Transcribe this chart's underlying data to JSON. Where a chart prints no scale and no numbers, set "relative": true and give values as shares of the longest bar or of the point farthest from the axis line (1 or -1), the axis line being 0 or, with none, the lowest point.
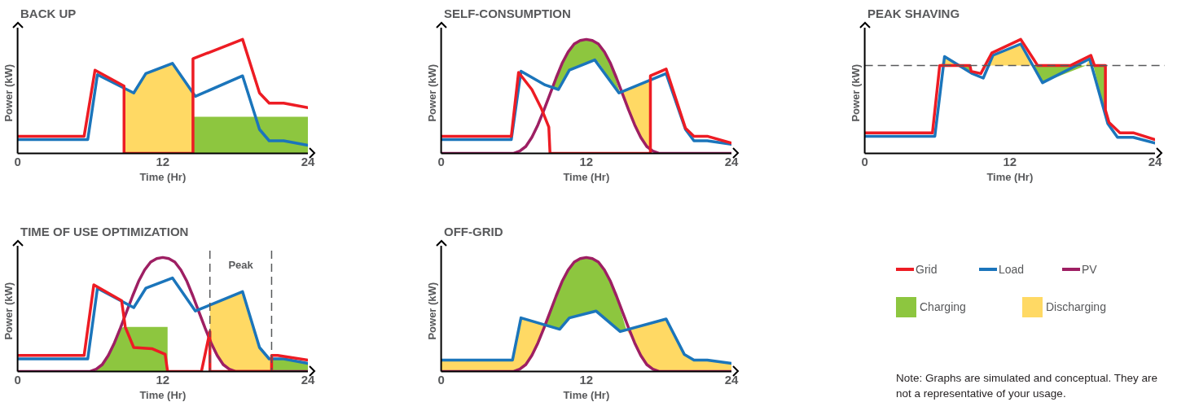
{
  "chart_data": [
    {
      "type": "line",
      "title": "BACK UP",
      "xlabel": "Time (Hr)",
      "ylabel": "Power (kW)",
      "relative": true,
      "xlim": [
        0,
        24
      ],
      "xticks": [
        0,
        12,
        24
      ],
      "series": [
        {
          "color": "#ed1c24",
          "x": [
            0,
            5.5,
            6.4,
            8.8,
            8.8,
            14.5,
            14.5,
            18.6,
            20,
            20.8,
            22,
            24
          ],
          "values": [
            0.15,
            0.15,
            0.73,
            0.59,
            0,
            0,
            0.83,
            1,
            0.53,
            0.44,
            0.44,
            0.4
          ]
        },
        {
          "color": "#1b75bb",
          "x": [
            0,
            5.8,
            6.6,
            9.6,
            10.6,
            12.8,
            14.7,
            18.6,
            20,
            20.8,
            22,
            24
          ],
          "values": [
            0.12,
            0.12,
            0.69,
            0.53,
            0.7,
            0.79,
            0.5,
            0.68,
            0.21,
            0.11,
            0.11,
            0.07
          ]
        },
        {
          "type": "area",
          "color": "#ffd964",
          "x": [
            8.8,
            9.6,
            10.6,
            12.8,
            14.5,
            14.5,
            8.8
          ],
          "values": [
            0.57,
            0.53,
            0.7,
            0.79,
            0.54,
            0,
            0
          ]
        },
        {
          "type": "area",
          "color": "#8dc63f",
          "x": [
            14.5,
            24,
            24,
            14.5
          ],
          "values": [
            0.32,
            0.32,
            0,
            0
          ]
        }
      ]
    },
    {
      "type": "line",
      "title": "SELF-CONSUMPTION",
      "xlabel": "Time (Hr)",
      "ylabel": "Power (kW)",
      "relative": true,
      "xlim": [
        0,
        24
      ],
      "xticks": [
        0,
        12,
        24
      ],
      "series": [
        {
          "color": "#ed1c24",
          "x": [
            0,
            5.8,
            6.4,
            7.5,
            8.3,
            8.9,
            9,
            17.3,
            17.3,
            18.6,
            20.2,
            20.9,
            22,
            24
          ],
          "values": [
            0.15,
            0.15,
            0.71,
            0.56,
            0.39,
            0.23,
            0,
            0,
            0.68,
            0.74,
            0.22,
            0.15,
            0.15,
            0.09
          ]
        },
        {
          "color": "#1b75bb",
          "x": [
            0,
            5.8,
            6.6,
            8.6,
            9.7,
            10.6,
            12.7,
            14.7,
            18.6,
            20.2,
            20.9,
            22,
            24
          ],
          "values": [
            0.12,
            0.12,
            0.72,
            0.6,
            0.56,
            0.73,
            0.82,
            0.53,
            0.7,
            0.21,
            0.11,
            0.11,
            0.08
          ]
        },
        {
          "color": "#9e1f63",
          "x": [
            0,
            6,
            6.5,
            7,
            7.5,
            8,
            8.5,
            9,
            9.5,
            10,
            10.5,
            11,
            11.5,
            12,
            12.5,
            13,
            13.5,
            14,
            14.5,
            15,
            15.5,
            16,
            16.5,
            17,
            17.5,
            18,
            24
          ],
          "values": [
            0,
            0,
            0.02,
            0.06,
            0.14,
            0.25,
            0.38,
            0.52,
            0.66,
            0.79,
            0.89,
            0.96,
            0.99,
            1,
            0.99,
            0.96,
            0.89,
            0.79,
            0.66,
            0.52,
            0.38,
            0.25,
            0.14,
            0.06,
            0.02,
            0,
            0
          ]
        },
        {
          "type": "area",
          "color": "#8dc63f",
          "x": [
            9.3,
            9.7,
            10,
            10.6,
            11,
            12,
            12.7,
            13,
            14,
            14.8,
            14,
            13,
            12.7,
            12,
            11,
            10.6,
            10,
            9.7
          ],
          "values": [
            0.58,
            0.71,
            0.79,
            0.91,
            0.96,
            1,
            0.98,
            0.96,
            0.79,
            0.53,
            0.64,
            0.8,
            0.82,
            0.78,
            0.75,
            0.73,
            0.62,
            0.56
          ]
        },
        {
          "type": "area",
          "color": "#ffd964",
          "x": [
            14.8,
            15,
            15.5,
            16,
            16.5,
            17,
            17.3,
            17.3,
            17,
            16.5,
            16,
            15.5,
            15
          ],
          "values": [
            0.53,
            0.54,
            0.57,
            0.59,
            0.61,
            0.63,
            0.64,
            0.03,
            0.06,
            0.14,
            0.25,
            0.38,
            0.52
          ]
        }
      ]
    },
    {
      "type": "line",
      "title": "PEAK SHAVING",
      "xlabel": "Time (Hr)",
      "ylabel": "Power (kW)",
      "relative": true,
      "xlim": [
        0,
        24
      ],
      "xticks": [
        0,
        12,
        24
      ],
      "ref_lines": [
        {
          "axis": "y",
          "value": 0.77,
          "color": "#58595b",
          "line_style": "dashed"
        }
      ],
      "series": [
        {
          "color": "#ed1c24",
          "x": [
            0,
            5.6,
            6.2,
            8.7,
            8.8,
            9.6,
            10.5,
            12.9,
            14.3,
            17,
            18.7,
            19,
            19.9,
            19.9,
            20.2,
            21.1,
            22.2,
            24
          ],
          "values": [
            0.18,
            0.18,
            0.77,
            0.77,
            0.72,
            0.7,
            0.88,
            1,
            0.77,
            0.77,
            0.86,
            0.77,
            0.77,
            0.38,
            0.27,
            0.18,
            0.18,
            0.12
          ]
        },
        {
          "color": "#1b75bb",
          "x": [
            0,
            5.8,
            6.6,
            8.9,
            9.8,
            10.6,
            12.9,
            14.7,
            18.6,
            20.1,
            20.9,
            22.2,
            24
          ],
          "values": [
            0.15,
            0.15,
            0.85,
            0.7,
            0.66,
            0.86,
            0.96,
            0.62,
            0.83,
            0.26,
            0.14,
            0.14,
            0.09
          ]
        },
        {
          "type": "area",
          "color": "#ffd964",
          "x": [
            6.3,
            6.6,
            7.8
          ],
          "values": [
            0.77,
            0.85,
            0.77
          ]
        },
        {
          "type": "area",
          "color": "#ffd964",
          "x": [
            10.1,
            10.6,
            12.9,
            13.9
          ],
          "values": [
            0.77,
            0.86,
            0.96,
            0.77
          ]
        },
        {
          "type": "area",
          "color": "#ffd964",
          "x": [
            18.3,
            18.6,
            18.9
          ],
          "values": [
            0.77,
            0.83,
            0.77
          ]
        },
        {
          "type": "area",
          "color": "#8dc63f",
          "x": [
            7.8,
            8.7,
            8.7
          ],
          "values": [
            0.77,
            0.77,
            0.71
          ]
        },
        {
          "type": "area",
          "color": "#8dc63f",
          "x": [
            14,
            18.3,
            14.7
          ],
          "values": [
            0.77,
            0.77,
            0.62
          ]
        },
        {
          "type": "area",
          "color": "#8dc63f",
          "x": [
            18.9,
            19.9,
            19.9
          ],
          "values": [
            0.77,
            0.77,
            0.34
          ]
        }
      ]
    },
    {
      "type": "line",
      "title": "TIME OF USE OPTIMIZATION",
      "xlabel": "Time (Hr)",
      "ylabel": "Power (kW)",
      "relative": true,
      "xlim": [
        0,
        24
      ],
      "xticks": [
        0,
        12,
        24
      ],
      "legend": "right",
      "ref_lines": [
        {
          "axis": "x",
          "value": 15.9,
          "color": "#58595b",
          "line_style": "dashed"
        },
        {
          "axis": "x",
          "value": 21,
          "color": "#58595b",
          "line_style": "dashed"
        }
      ],
      "annotations": [
        "Peak"
      ],
      "series": [
        {
          "name": "Grid",
          "color": "#ed1c24",
          "x": [
            0,
            5.5,
            6.3,
            8.6,
            8.9,
            9.6,
            11.1,
            12.2,
            12.4,
            15.2,
            15.9,
            15.9,
            21,
            21,
            21.5,
            24
          ],
          "values": [
            0.14,
            0.14,
            0.76,
            0.62,
            0.39,
            0.21,
            0.2,
            0.15,
            0,
            0,
            0.35,
            0,
            0,
            0.14,
            0.14,
            0.1
          ]
        },
        {
          "name": "Load",
          "color": "#1b75bb",
          "x": [
            0,
            5.8,
            6.6,
            9.6,
            10.6,
            12.8,
            14.7,
            18.6,
            20,
            20.8,
            22,
            24
          ],
          "values": [
            0.11,
            0.11,
            0.73,
            0.56,
            0.73,
            0.82,
            0.53,
            0.7,
            0.21,
            0.11,
            0.11,
            0.07
          ]
        },
        {
          "name": "PV",
          "color": "#9e1f63",
          "x": [
            0,
            6,
            6.5,
            7,
            7.5,
            8,
            8.5,
            9,
            9.5,
            10,
            10.5,
            11,
            11.5,
            12,
            12.5,
            13,
            13.5,
            14,
            14.5,
            15,
            15.5,
            16,
            16.5,
            17,
            17.5,
            18,
            24
          ],
          "values": [
            0,
            0,
            0.02,
            0.06,
            0.14,
            0.25,
            0.38,
            0.52,
            0.66,
            0.79,
            0.89,
            0.96,
            0.99,
            1,
            0.99,
            0.96,
            0.89,
            0.79,
            0.66,
            0.52,
            0.38,
            0.25,
            0.14,
            0.06,
            0.02,
            0,
            0
          ]
        },
        {
          "name": "Charging",
          "type": "area",
          "color": "#8dc63f",
          "x": [
            6.5,
            7,
            7.5,
            8,
            8.5,
            8.8,
            12.4,
            12.4,
            6.5
          ],
          "values": [
            0.02,
            0.06,
            0.14,
            0.25,
            0.38,
            0.39,
            0.39,
            0,
            0
          ]
        },
        {
          "name": "Discharging",
          "type": "area",
          "color": "#ffd964",
          "x": [
            15.9,
            16,
            16.5,
            17,
            17.5,
            18,
            18.6,
            20,
            20.8,
            21,
            21,
            18,
            17.5,
            17,
            16.5,
            16,
            15.9
          ],
          "values": [
            0.58,
            0.59,
            0.61,
            0.63,
            0.65,
            0.67,
            0.7,
            0.21,
            0.11,
            0.11,
            0,
            0,
            0.02,
            0.06,
            0.14,
            0.25,
            0.27
          ]
        },
        {
          "type": "area",
          "color": "#8dc63f",
          "x": [
            21,
            22,
            24,
            24,
            21
          ],
          "values": [
            0.11,
            0.11,
            0.07,
            0,
            0
          ]
        }
      ]
    },
    {
      "type": "line",
      "title": "OFF-GRID",
      "xlabel": "Time (Hr)",
      "ylabel": "Power (kW)",
      "relative": true,
      "xlim": [
        0,
        24
      ],
      "xticks": [
        0,
        12,
        24
      ],
      "series": [
        {
          "color": "#1b75bb",
          "x": [
            0,
            5.9,
            6.6,
            9.8,
            10.6,
            12.8,
            14.8,
            18.6,
            20.1,
            20.9,
            22,
            24
          ],
          "values": [
            0.1,
            0.1,
            0.47,
            0.37,
            0.47,
            0.53,
            0.35,
            0.46,
            0.15,
            0.1,
            0.1,
            0.07
          ]
        },
        {
          "color": "#9e1f63",
          "x": [
            0,
            6,
            6.5,
            7,
            7.5,
            8,
            8.5,
            9,
            9.5,
            10,
            10.5,
            11,
            11.5,
            12,
            12.5,
            13,
            13.5,
            14,
            14.5,
            15,
            15.5,
            16,
            16.5,
            17,
            17.5,
            18,
            24
          ],
          "values": [
            0,
            0,
            0.02,
            0.06,
            0.14,
            0.25,
            0.38,
            0.52,
            0.66,
            0.79,
            0.89,
            0.96,
            0.99,
            1,
            0.99,
            0.96,
            0.89,
            0.79,
            0.66,
            0.52,
            0.38,
            0.25,
            0.14,
            0.06,
            0.02,
            0,
            0
          ]
        },
        {
          "type": "area",
          "color": "#ffd964",
          "x": [
            0,
            5.9,
            6.6,
            7,
            7.5,
            8,
            8.6,
            8,
            7.5,
            7,
            6.6,
            6,
            0
          ],
          "values": [
            0.1,
            0.1,
            0.47,
            0.46,
            0.44,
            0.42,
            0.4,
            0.25,
            0.14,
            0.06,
            0.03,
            0,
            0
          ]
        },
        {
          "type": "area",
          "color": "#8dc63f",
          "x": [
            8.6,
            9,
            9.5,
            9.8,
            10,
            10.6,
            11,
            12,
            12.8,
            13,
            14,
            14.8,
            15.3,
            14.8,
            14,
            13,
            12.8,
            12,
            11,
            10.6,
            10,
            9.8,
            9.5,
            9
          ],
          "values": [
            0.4,
            0.52,
            0.66,
            0.74,
            0.79,
            0.91,
            0.96,
            1,
            0.98,
            0.96,
            0.79,
            0.55,
            0.37,
            0.35,
            0.42,
            0.52,
            0.53,
            0.51,
            0.48,
            0.47,
            0.4,
            0.37,
            0.38,
            0.39
          ]
        },
        {
          "type": "area",
          "color": "#ffd964",
          "x": [
            15.3,
            16,
            16.5,
            17,
            17.5,
            18,
            18.6,
            20.1,
            20.9,
            22,
            24,
            24,
            18,
            17.5,
            17,
            16.5,
            16
          ],
          "values": [
            0.37,
            0.39,
            0.4,
            0.42,
            0.43,
            0.45,
            0.46,
            0.15,
            0.1,
            0.1,
            0.07,
            0,
            0,
            0.02,
            0.06,
            0.14,
            0.25
          ]
        }
      ]
    },
    {
      "type": "other",
      "annotations": [
        "Note: Graphs are simulated and conceptual. They are not a representative of your usage."
      ]
    }
  ]
}
